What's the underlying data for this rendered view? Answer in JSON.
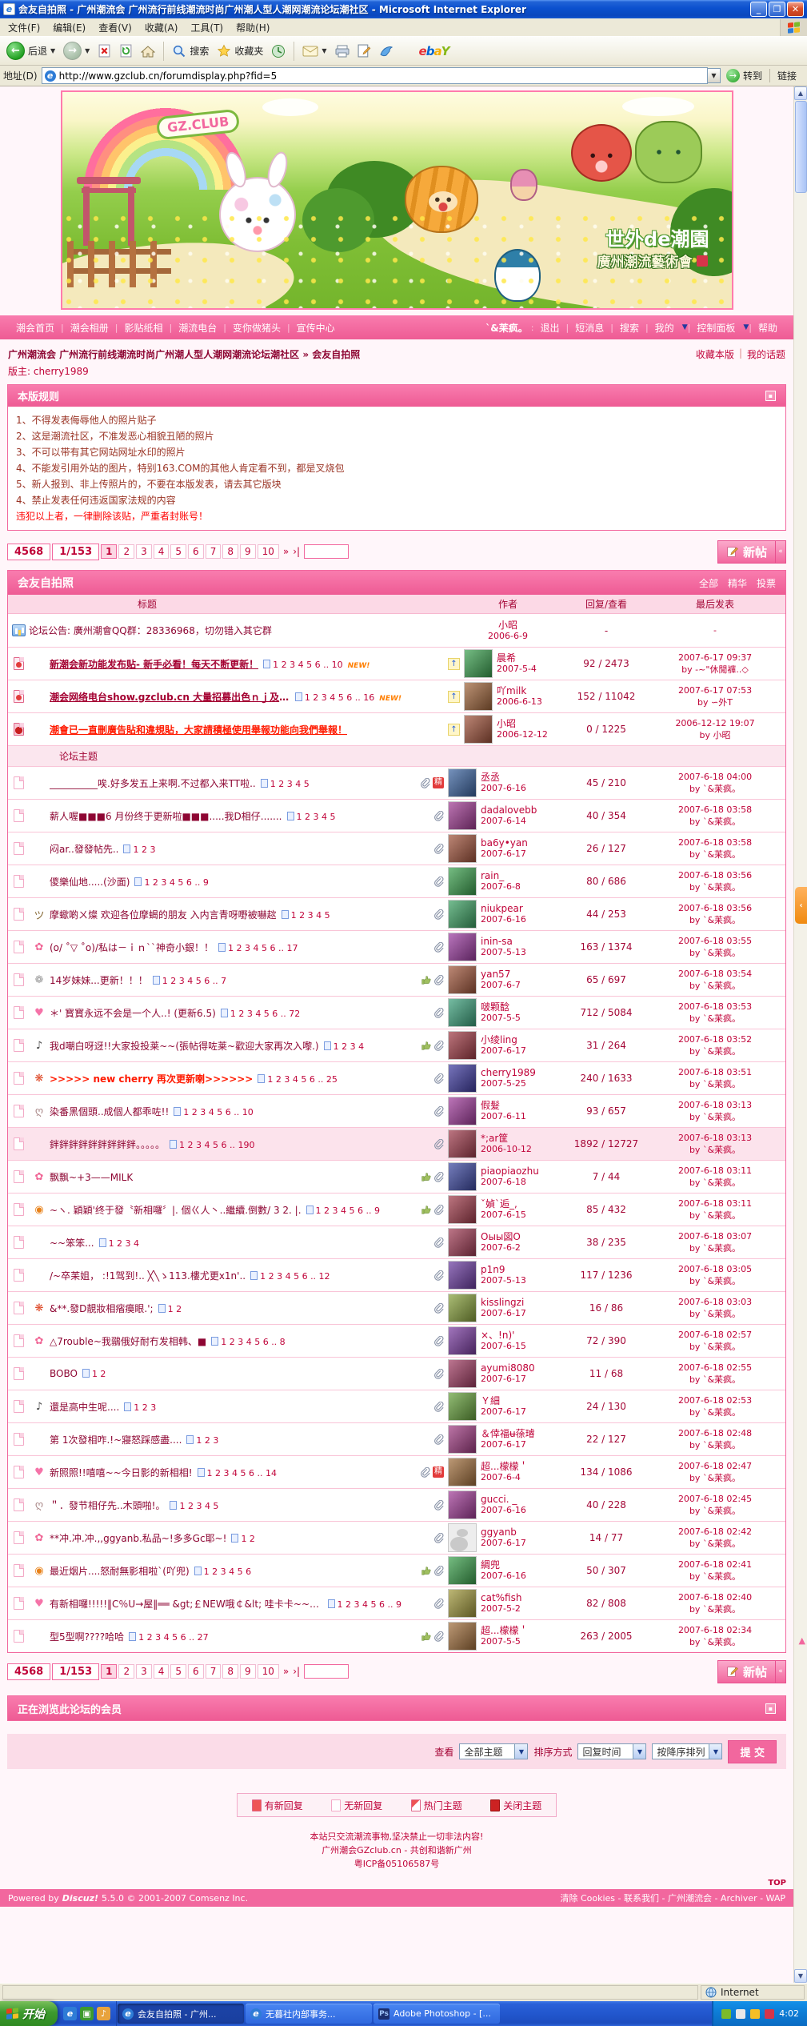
{
  "theme": {
    "pink": "#F2679E",
    "light_pink": "#FCD9E6",
    "pale_pink": "#FDEFF5",
    "maroon": "#A40636",
    "red": "#C00339",
    "bright_red": "#FF1A00",
    "new_orange": "#FF7E00",
    "xp_blue": "#245EDC"
  },
  "browser": {
    "title": "会友自拍照 - 广州潮流会 广州流行前线潮流时尚广州潮人型人潮网潮流论坛潮社区 - Microsoft Internet Explorer",
    "menu": [
      "文件(F)",
      "编辑(E)",
      "查看(V)",
      "收藏(A)",
      "工具(T)",
      "帮助(H)"
    ],
    "toolbar": {
      "back": "后退",
      "search": "搜索",
      "favorites": "收藏夹",
      "ebay": "ebaY"
    },
    "address_label": "地址(D)",
    "address_value": "http://www.gzclub.cn/forumdisplay.php?fid=5",
    "go": "转到",
    "links": "链接",
    "status_right": "Internet"
  },
  "banner": {
    "logo": "GZ.CLUB",
    "slogan1": "世外de潮園",
    "slogan2": "廣州潮流藝術會"
  },
  "nav": {
    "links": [
      "潮会首页",
      "潮会相册",
      "影贴纸相",
      "潮流电台",
      "变你做猪头",
      "宣传中心"
    ],
    "sep": "|",
    "username": "`&苿疯。",
    "user_suffix": ":",
    "user_links": [
      {
        "label": "退出"
      },
      {
        "label": "短消息"
      },
      {
        "label": "搜索"
      },
      {
        "label": "我的",
        "caret": true
      },
      {
        "label": "控制面板",
        "caret": true
      },
      {
        "label": "帮助"
      }
    ]
  },
  "breadcrumb": {
    "path": "广州潮流会 广州流行前线潮流时尚广州潮人型人潮网潮流论坛潮社区 » 会友自拍照",
    "links": [
      "收藏本版",
      "我的话题"
    ],
    "moderator": "版主: cherry1989"
  },
  "rules": {
    "title": "本版规则",
    "lines": [
      "1、不得发表侮辱他人的照片贴子",
      "2、这是潮流社区，不准发恶心相貌丑陋的照片",
      "3、不可以带有其它网站网址水印的照片",
      "4、不能发引用外站的图片，特别163.COM的其他人肯定看不到，都是叉烧包",
      "5、新人报到、非上传照片的，不要在本版发表，请去其它版块",
      "4、禁止发表任何违返国家法规的内容"
    ],
    "warning": "违犯以上者，一律删除该贴，严重者封账号！"
  },
  "pager": {
    "total": "4568",
    "page": "1/153",
    "pages": [
      "1",
      "2",
      "3",
      "4",
      "5",
      "6",
      "7",
      "8",
      "9",
      "10"
    ],
    "current": "1",
    "more": [
      "»",
      "›|"
    ],
    "new_post": "新帖"
  },
  "forum": {
    "name": "会友自拍照",
    "header_links": [
      "全部",
      "精华",
      "投票"
    ],
    "columns": [
      "标题",
      "作者",
      "回复/查看",
      "最后发表"
    ],
    "separator": "论坛主题",
    "new_badge": "NEW!",
    "digest_label": "精",
    "threads": [
      {
        "kind": "announce",
        "title": "论坛公告: 廣州潮會QQ群：28336968，切勿错入其它群",
        "author": "小昭",
        "date": "2006-6-9",
        "replies": "-",
        "last_date": "-",
        "last_by": ""
      },
      {
        "kind": "sticky",
        "title": "新潮会新功能发布贴- 新手必看！每天不断更新！",
        "pages": "1 2 3 4 5 6 .. 10",
        "new": true,
        "author": "晨希",
        "date": "2007-5-4",
        "replies": "92 / 2473",
        "last_date": "2007-6-17 09:37",
        "last_by": "by -~\"休閒褲..◇"
      },
      {
        "kind": "sticky",
        "title": "潮会网络电台show.gzclub.cn 大量招募出色ｎｊ及音乐制作人",
        "pages": "1 2 3 4 5 6 .. 16",
        "new": true,
        "author": "吖milk",
        "date": "2006-6-13",
        "replies": "152 / 11042",
        "last_date": "2007-6-17 07:53",
        "last_by": "by ∽外T"
      },
      {
        "kind": "sticky_closed",
        "title": "潮會已一直刪廣告貼和違規貼，大家請積極使用舉報功能向我們舉報！",
        "author": "小昭",
        "date": "2006-12-12",
        "replies": "0 / 1225",
        "last_date": "2006-12-12 19:07",
        "last_by": "by 小昭"
      },
      {
        "kind": "separator"
      },
      {
        "title": "__________唉.好多发五上来啊.不过都入来TT啦..",
        "pages": "1 2 3 4 5",
        "clip": true,
        "digest": true,
        "author": "丞丞",
        "date": "2007-6-16",
        "replies": "45 / 210",
        "last_date": "2007-6-18 04:00",
        "last_by": "by `&苿疯。"
      },
      {
        "title": "薪人喔■■■6 月份终于更新啦■■■.....我D相仔.......",
        "pages": "1 2 3 4 5",
        "clip": true,
        "author": "dadalovebb",
        "date": "2007-6-14",
        "replies": "40 / 354",
        "last_date": "2007-6-18 03:58",
        "last_by": "by `&苿疯。"
      },
      {
        "title": "闷ar..發發帖先..",
        "pages": "1 2 3",
        "clip": true,
        "author": "ba6y•yan",
        "date": "2007-6-17",
        "replies": "26 / 127",
        "last_date": "2007-6-18 03:58",
        "last_by": "by `&苿疯。"
      },
      {
        "title": "儍樂仙地.....(沙面)",
        "pages": "1 2 3 4 5 6 .. 9",
        "clip": true,
        "author": "rain_",
        "date": "2007-6-8",
        "replies": "80 / 686",
        "last_date": "2007-6-18 03:56",
        "last_by": "by `&苿疯。"
      },
      {
        "emo": "monkey",
        "title": "摩蠍啲ㄨ燦 欢迎各位摩蝎的朋友 入内言青呀嘢被嚇趑",
        "pages": "1 2 3 4 5",
        "clip": true,
        "author": "niukpear",
        "date": "2007-6-16",
        "replies": "44 / 253",
        "last_date": "2007-6-18 03:56",
        "last_by": "by `&苿疯。"
      },
      {
        "emo": "sun",
        "title": "(o/ ˚▽ ˚o)/私は－ｉｎ``神奇小銀！！",
        "pages": "1 2 3 4 5 6 .. 17",
        "clip": true,
        "author": "inin-sa",
        "date": "2007-5-13",
        "replies": "163 / 1374",
        "last_date": "2007-6-18 03:55",
        "last_by": "by `&苿疯。"
      },
      {
        "emo": "swirl",
        "title": "14岁妹妹...更新！！！",
        "pages": "1 2 3 4 5 6 .. 7",
        "thumb": true,
        "clip": true,
        "author": "yan57",
        "date": "2007-6-7",
        "replies": "65 / 697",
        "last_date": "2007-6-18 03:54",
        "last_by": "by `&苿疯。"
      },
      {
        "emo": "hearts",
        "title": "＊' 寳寳永远不会是一个人..! (更新6.5)",
        "pages": "1 2 3 4 5 6 .. 72",
        "clip": true,
        "author": "啵颗馠",
        "date": "2007-5-5",
        "replies": "712 / 5084",
        "last_date": "2007-6-18 03:53",
        "last_by": "by `&苿疯。"
      },
      {
        "emo": "music",
        "title": "我d嘲白呀迓!!大家投投莱~~(張帖得咗莱~歡迎大家再次入嚟.)",
        "pages": "1 2 3 4",
        "thumb": true,
        "clip": true,
        "author": "小绫ling",
        "date": "2007-6-17",
        "replies": "31 / 264",
        "last_date": "2007-6-18 03:52",
        "last_by": "by `&苿疯。"
      },
      {
        "emo": "berry",
        "title": ">>>>> new cherry 再次更新喇>>>>>>",
        "red": true,
        "pages": "1 2 3 4 5 6 .. 25",
        "clip": true,
        "author": "cherry1989",
        "date": "2007-5-25",
        "replies": "240 / 1633",
        "last_date": "2007-6-18 03:51",
        "last_by": "by `&苿疯。"
      },
      {
        "emo": "figure",
        "title": "染番黑個頭..成個人都乖咗!!",
        "pages": "1 2 3 4 5 6 .. 10",
        "clip": true,
        "author": "假髮",
        "date": "2007-6-11",
        "replies": "93 / 657",
        "last_date": "2007-6-18 03:13",
        "last_by": "by `&苿疯。"
      },
      {
        "title": "鉡鉡鉡鉡鉡鉡鉡鉡鉡。。。。。",
        "pages": "1 2 3 4 5 6 .. 190",
        "clip": true,
        "author": "*;ar筐",
        "date": "2006-10-12",
        "replies": "1892 / 12727",
        "last_date": "2007-6-18 03:13",
        "last_by": "by `&苿疯。",
        "highlight": true
      },
      {
        "emo": "sun",
        "title": "飘飘~+3——MILK",
        "thumb": true,
        "clip": true,
        "author": "piaopiaozhu",
        "date": "2007-6-18",
        "replies": "7 / 44",
        "last_date": "2007-6-18 03:11",
        "last_by": "by `&苿疯。"
      },
      {
        "emo": "sushi",
        "title": "~ヽ. 穎穎'终于發〝新相囉〞|. 個ㄍ人丶..繼續.倒數/ 3 2. |.",
        "pages": "1 2 3 4 5 6 .. 9",
        "thumb": true,
        "clip": true,
        "author": "ˇ媜`逅_,",
        "date": "2007-6-15",
        "replies": "85 / 432",
        "last_date": "2007-6-18 03:11",
        "last_by": "by `&苿疯。"
      },
      {
        "title": "~~笨笨...",
        "pages": "1 2 3 4",
        "clip": true,
        "author": "Оыы図О",
        "date": "2007-6-2",
        "replies": "38 / 235",
        "last_date": "2007-6-18 03:07",
        "last_by": "by `&苿疯。"
      },
      {
        "title": "/~卒苿姐， :!1驾到!.. ╳╲ゝ113.樓尤更x1n'..",
        "pages": "1 2 3 4 5 6 .. 12",
        "clip": true,
        "author": "p1n9",
        "date": "2007-5-13",
        "replies": "117 / 1236",
        "last_date": "2007-6-18 03:05",
        "last_by": "by `&苿疯。"
      },
      {
        "emo": "berry",
        "title": "&**.發D靚妝相㾪瘼眼.';",
        "pages": "1 2",
        "clip": true,
        "author": "kisslingzi",
        "date": "2007-6-17",
        "replies": "16 / 86",
        "last_date": "2007-6-18 03:03",
        "last_by": "by `&苿疯。"
      },
      {
        "emo": "sun",
        "title": "△7rouble~我鶸俄好耐冇发相韩、■",
        "pages": "1 2 3 4 5 6 .. 8",
        "clip": true,
        "author": "×、!n)'",
        "date": "2007-6-15",
        "replies": "72 / 390",
        "last_date": "2007-6-18 02:57",
        "last_by": "by `&苿疯。"
      },
      {
        "title": "BOBO",
        "pages": "1 2",
        "clip": true,
        "author": "ayumi8080",
        "date": "2007-6-17",
        "replies": "11 / 68",
        "last_date": "2007-6-18 02:55",
        "last_by": "by `&苿疯。"
      },
      {
        "emo": "music",
        "title": "還是高中生呢....",
        "pages": "1 2 3",
        "clip": true,
        "author": "Ｙ細",
        "date": "2007-6-17",
        "replies": "24 / 130",
        "last_date": "2007-6-18 02:53",
        "last_by": "by `&苿疯。"
      },
      {
        "title": "第 1次發相咋.!~寢怒踩感盡....",
        "pages": "1 2 3",
        "clip": true,
        "author": "＆倖福ʉ蒣璿",
        "date": "2007-6-17",
        "replies": "22 / 127",
        "last_date": "2007-6-18 02:48",
        "last_by": "by `&苿疯。"
      },
      {
        "emo": "hearts",
        "title": "新照照!!嘻嘻~~今日影的新相相!",
        "pages": "1 2 3 4 5 6 .. 14",
        "clip": true,
        "digest": true,
        "author": "超...檬檬＇",
        "date": "2007-6-4",
        "replies": "134 / 1086",
        "last_date": "2007-6-18 02:47",
        "last_by": "by `&苿疯。"
      },
      {
        "emo": "figure",
        "title": "＂．發节相仔先..木頭啪!。",
        "pages": "1 2 3 4 5",
        "clip": true,
        "author": "gucci. _",
        "date": "2007-6-16",
        "replies": "40 / 228",
        "last_date": "2007-6-18 02:45",
        "last_by": "by `&苿疯。"
      },
      {
        "emo": "sun",
        "title": "**冲.冲.冲.,,ggyanb.私品~!多多Gc耶~!",
        "pages": "1 2",
        "clip": true,
        "author": "ggyanb",
        "date": "2007-6-17",
        "replies": "14 / 77",
        "last_date": "2007-6-18 02:42",
        "last_by": "by `&苿疯。",
        "noavatar": true
      },
      {
        "emo": "sushi",
        "title": "最近烟片....怒耐無影相啦`(吖兜)",
        "pages": "1 2 3 4 5 6",
        "thumb": true,
        "clip": true,
        "author": "綢兜",
        "date": "2007-6-16",
        "replies": "50 / 307",
        "last_date": "2007-6-18 02:41",
        "last_by": "by `&苿疯。"
      },
      {
        "emo": "hearts",
        "title": "有新相囉!!!!!‖С％U→屋‖══ &gt;￡NEW哦￠&lt; 哇卡卡~~100囉!!",
        "pages": "1 2 3 4 5 6 .. 9",
        "clip": true,
        "author": "cat%fish",
        "date": "2007-5-2",
        "replies": "82 / 808",
        "last_date": "2007-6-18 02:40",
        "last_by": "by `&苿疯。"
      },
      {
        "title": "型5型啊????哈哈",
        "pages": "1 2 3 4 5 6 .. 27",
        "thumb": true,
        "clip": true,
        "author": "超...檬檬＇",
        "date": "2007-5-5",
        "replies": "263 / 2005",
        "last_date": "2007-6-18 02:34",
        "last_by": "by `&苿疯。"
      }
    ]
  },
  "browsing": {
    "title": "正在浏览此论坛的会员"
  },
  "filter": {
    "view_label": "查看",
    "view": "全部主题",
    "sort_label": "排序方式",
    "sort": "回复时间",
    "order": "按降序排列",
    "submit": "提 交"
  },
  "legend": [
    "有新回复",
    "无新回复",
    "热门主题",
    "关闭主题"
  ],
  "footer": {
    "line1": "本站只交流潮流事物,坚决禁止一切非法内容!",
    "line2": "广州潮会GZclub.cn - 共创和谐新广州",
    "line3": "粤ICP备05106587号",
    "top": "TOP",
    "powered": "Powered by",
    "discuz": "Discuz!",
    "version": "5.5.0",
    "copyright": "© 2001-2007 Comsenz Inc.",
    "links": "清除 Cookies - 联系我们 - 广州潮流会 - Archiver - WAP"
  },
  "taskbar": {
    "start": "开始",
    "tasks": [
      {
        "title": "会友自拍照 - 广州...",
        "icon": "ie",
        "active": true
      },
      {
        "title": "无暮社内部事务...",
        "icon": "ie"
      },
      {
        "title": "Adobe Photoshop - [...",
        "icon": "ps"
      }
    ],
    "clock": "4:02"
  }
}
